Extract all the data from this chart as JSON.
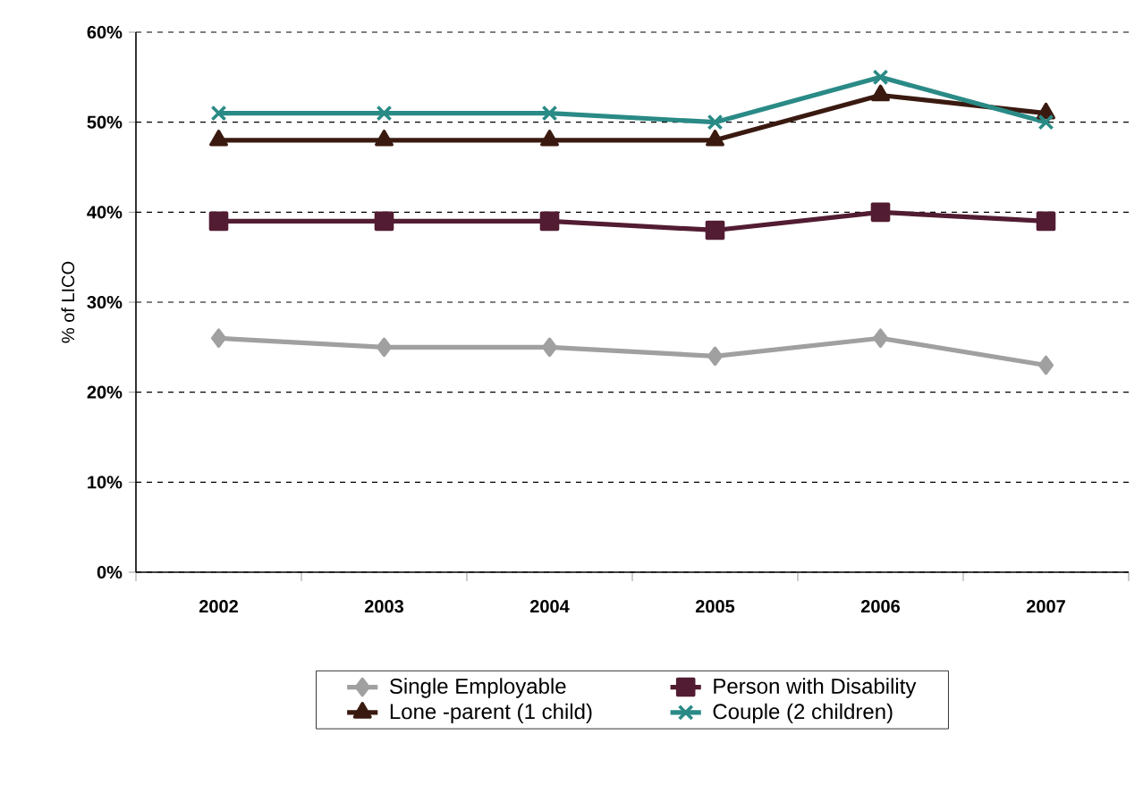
{
  "chart_data": {
    "type": "line",
    "ylabel": "% of LICO",
    "categories": [
      "2002",
      "2003",
      "2004",
      "2005",
      "2006",
      "2007"
    ],
    "ylim": [
      0,
      60
    ],
    "yticks": [
      {
        "value": 0,
        "label": "0%"
      },
      {
        "value": 10,
        "label": "10%"
      },
      {
        "value": 20,
        "label": "20%"
      },
      {
        "value": 30,
        "label": "30%"
      },
      {
        "value": 40,
        "label": "40%"
      },
      {
        "value": 50,
        "label": "50%"
      },
      {
        "value": 60,
        "label": "60%"
      }
    ],
    "grid": "y",
    "legend": "bottom",
    "line_style": "solid",
    "series": [
      {
        "name": "Single Employable",
        "color": "#a0a0a0",
        "marker": "diamond",
        "values": [
          26,
          25,
          25,
          24,
          26,
          23
        ]
      },
      {
        "name": "Person with Disability",
        "color": "#521c32",
        "marker": "square",
        "values": [
          39,
          39,
          39,
          38,
          40,
          39
        ]
      },
      {
        "name": "Lone -parent (1 child)",
        "color": "#3a1a10",
        "marker": "triangle",
        "values": [
          48,
          48,
          48,
          48,
          53,
          51
        ]
      },
      {
        "name": "Couple (2 children)",
        "color": "#2a8a86",
        "marker": "cross",
        "values": [
          51,
          51,
          51,
          50,
          55,
          50
        ]
      }
    ]
  }
}
